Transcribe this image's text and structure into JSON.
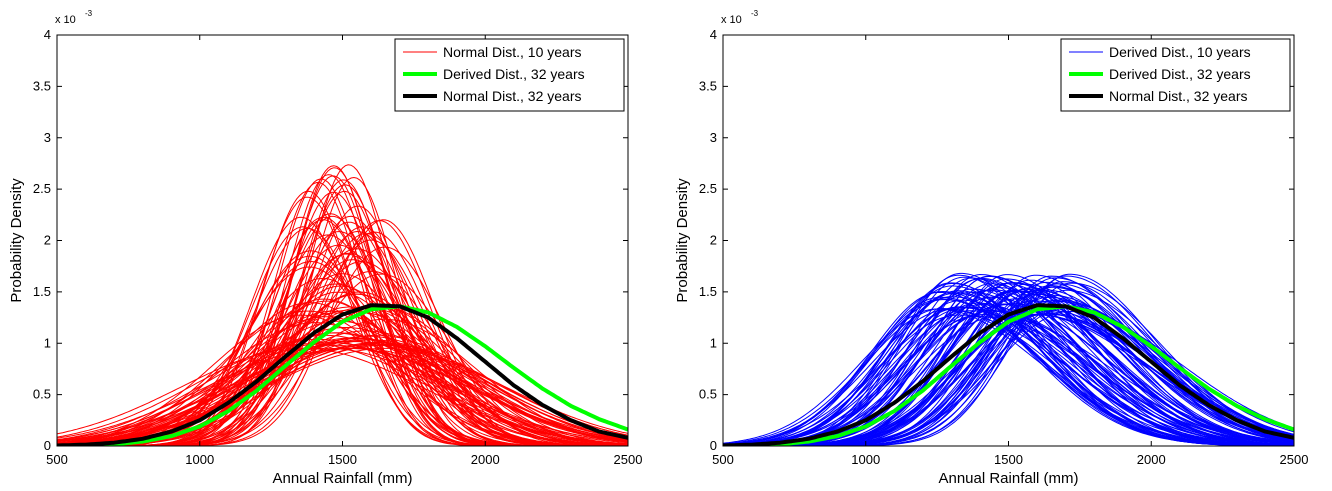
{
  "chart_data": [
    {
      "type": "line",
      "xlabel": "Annual Rainfall (mm)",
      "ylabel": "Probability Density",
      "y_exponent_label": "x 10",
      "y_exponent_power": "-3",
      "xlim": [
        500,
        2500
      ],
      "ylim": [
        0,
        0.004
      ],
      "x_ticks": [
        "500",
        "1000",
        "1500",
        "2000",
        "2500"
      ],
      "y_ticks": [
        "0",
        "0.5",
        "1",
        "1.5",
        "2",
        "2.5",
        "3",
        "3.5",
        "4"
      ],
      "legend_position": "top-right",
      "grid": false,
      "series": [
        {
          "name": "Normal Dist., 10 years",
          "color": "#ff0000",
          "kind": "ensemble",
          "count": 100,
          "mean_range": [
            1350,
            1650
          ],
          "std_range": [
            140,
            420
          ],
          "peak_range_x1e3": [
            0.95,
            2.85
          ]
        },
        {
          "name": "Derived Dist., 32 years",
          "color": "#00ff00",
          "kind": "curve",
          "x": [
            500,
            600,
            700,
            800,
            900,
            1000,
            1100,
            1200,
            1300,
            1400,
            1500,
            1600,
            1700,
            1800,
            1900,
            2000,
            2100,
            2200,
            2300,
            2400,
            2500
          ],
          "y_x1e3": [
            0.002,
            0.006,
            0.017,
            0.043,
            0.096,
            0.19,
            0.34,
            0.54,
            0.78,
            1.01,
            1.21,
            1.33,
            1.36,
            1.3,
            1.16,
            0.97,
            0.76,
            0.56,
            0.39,
            0.26,
            0.16
          ]
        },
        {
          "name": "Normal Dist., 32 years",
          "color": "#000000",
          "kind": "curve",
          "x": [
            500,
            600,
            700,
            800,
            900,
            1000,
            1100,
            1200,
            1300,
            1400,
            1500,
            1600,
            1700,
            1800,
            1900,
            2000,
            2100,
            2200,
            2300,
            2400,
            2500
          ],
          "y_x1e3": [
            0.005,
            0.013,
            0.032,
            0.07,
            0.14,
            0.25,
            0.42,
            0.63,
            0.87,
            1.1,
            1.28,
            1.37,
            1.36,
            1.25,
            1.05,
            0.82,
            0.59,
            0.4,
            0.25,
            0.14,
            0.08
          ]
        }
      ]
    },
    {
      "type": "line",
      "xlabel": "Annual Rainfall (mm)",
      "ylabel": "Probability Density",
      "y_exponent_label": "x 10",
      "y_exponent_power": "-3",
      "xlim": [
        500,
        2500
      ],
      "ylim": [
        0,
        0.004
      ],
      "x_ticks": [
        "500",
        "1000",
        "1500",
        "2000",
        "2500"
      ],
      "y_ticks": [
        "0",
        "0.5",
        "1",
        "1.5",
        "2",
        "2.5",
        "3",
        "3.5",
        "4"
      ],
      "legend_position": "top-right",
      "grid": false,
      "series": [
        {
          "name": "Derived Dist., 10 years",
          "color": "#0000ff",
          "kind": "ensemble",
          "count": 100,
          "mode_range": [
            1250,
            1720
          ],
          "peak_range_x1e3": [
            1.25,
            1.68
          ]
        },
        {
          "name": "Derived Dist., 32 years",
          "color": "#00ff00",
          "kind": "curve",
          "x": [
            500,
            600,
            700,
            800,
            900,
            1000,
            1100,
            1200,
            1300,
            1400,
            1500,
            1600,
            1700,
            1800,
            1900,
            2000,
            2100,
            2200,
            2300,
            2400,
            2500
          ],
          "y_x1e3": [
            0.002,
            0.006,
            0.017,
            0.043,
            0.096,
            0.19,
            0.34,
            0.54,
            0.78,
            1.01,
            1.21,
            1.33,
            1.36,
            1.3,
            1.16,
            0.97,
            0.76,
            0.56,
            0.39,
            0.26,
            0.16
          ]
        },
        {
          "name": "Normal Dist., 32 years",
          "color": "#000000",
          "kind": "curve",
          "x": [
            500,
            600,
            700,
            800,
            900,
            1000,
            1100,
            1200,
            1300,
            1400,
            1500,
            1600,
            1700,
            1800,
            1900,
            2000,
            2100,
            2200,
            2300,
            2400,
            2500
          ],
          "y_x1e3": [
            0.005,
            0.013,
            0.032,
            0.07,
            0.14,
            0.25,
            0.42,
            0.63,
            0.87,
            1.1,
            1.28,
            1.37,
            1.36,
            1.25,
            1.05,
            0.82,
            0.59,
            0.4,
            0.25,
            0.14,
            0.08
          ]
        }
      ]
    }
  ]
}
